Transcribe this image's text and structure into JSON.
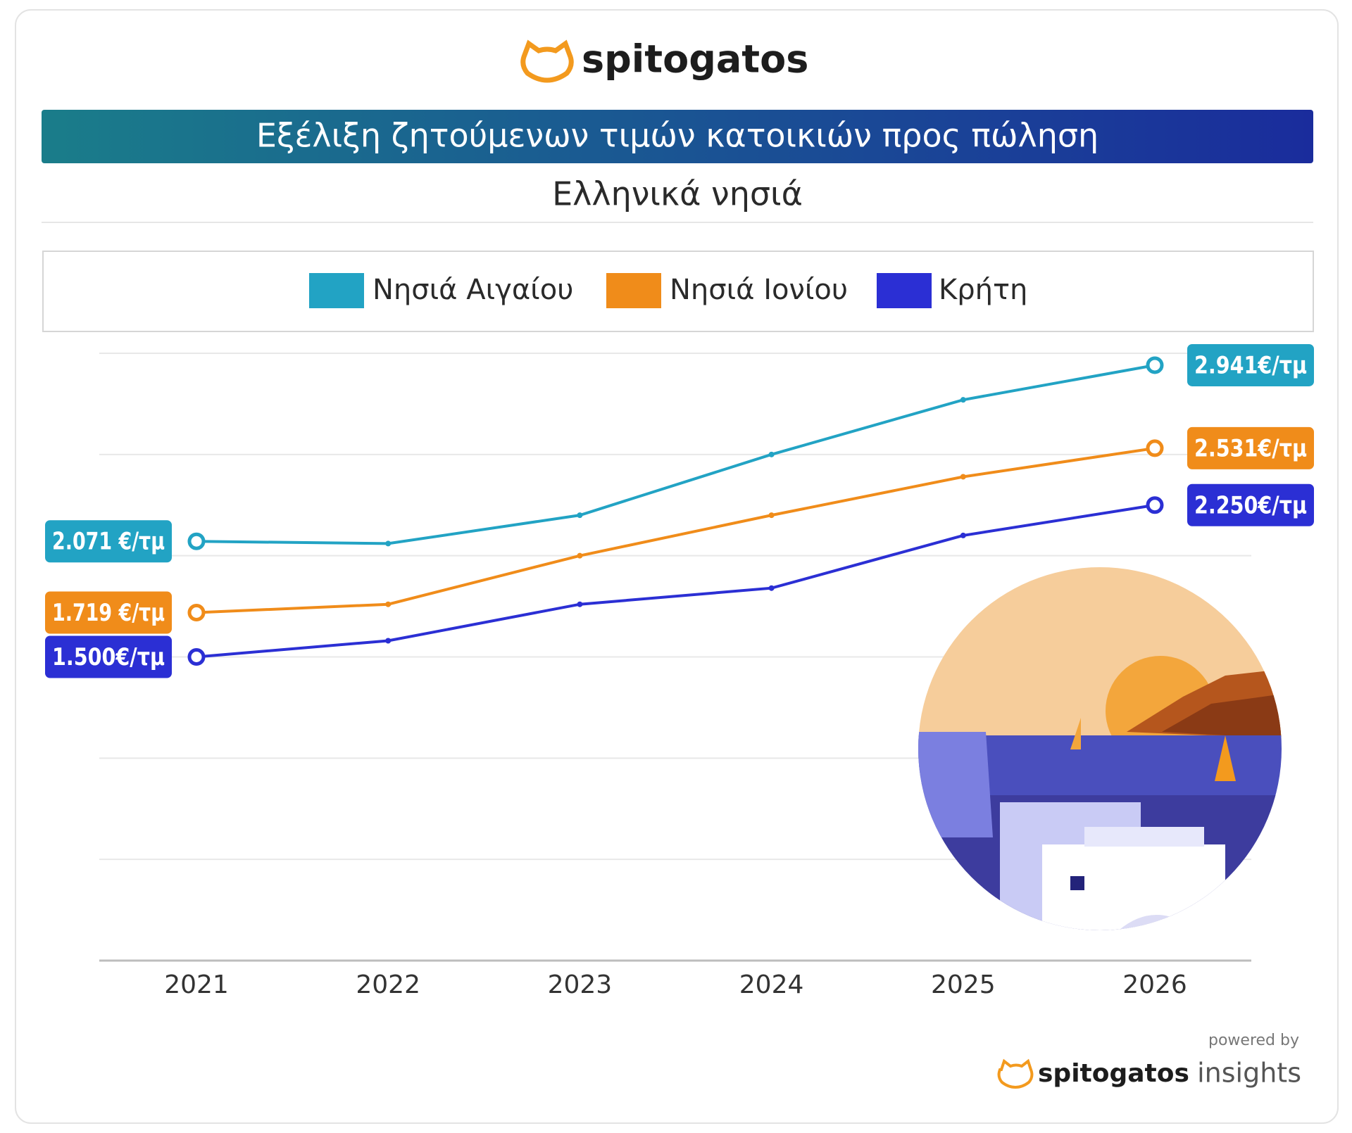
{
  "logo_text": "spitogatos",
  "powered_by": "powered by",
  "footer_brand": "spitogatos",
  "footer_suffix": "insights",
  "chart_data": {
    "type": "line",
    "title": "Εξέλιξη ζητούμενων τιμών κατοικιών προς πώληση",
    "subtitle": "Ελληνικά νησιά",
    "categories": [
      "2021",
      "2022",
      "2023",
      "2024",
      "2025",
      "2026"
    ],
    "ylim": [
      0,
      3000
    ],
    "yticks": [
      0,
      500,
      1000,
      1500,
      2000,
      2500,
      3000
    ],
    "grid": true,
    "series": [
      {
        "name": "Νησιά Αιγαίου",
        "color": "#22a3c4",
        "values": [
          2071,
          2060,
          2200,
          2500,
          2770,
          2941
        ],
        "value_labels": [
          "2.071 €/τμ",
          null,
          null,
          null,
          null,
          "2.941€/τμ"
        ]
      },
      {
        "name": "Νησιά Ιονίου",
        "color": "#f08c1a",
        "values": [
          1719,
          1760,
          2000,
          2200,
          2390,
          2531
        ],
        "value_labels": [
          "1.719 €/τμ",
          null,
          null,
          null,
          null,
          "2.531€/τμ"
        ]
      },
      {
        "name": "Κρήτη",
        "color": "#2b2fd4",
        "values": [
          1500,
          1580,
          1760,
          1840,
          2100,
          2250
        ],
        "value_labels": [
          "1.500€/τμ",
          null,
          null,
          null,
          null,
          "2.250€/τμ"
        ]
      }
    ]
  }
}
